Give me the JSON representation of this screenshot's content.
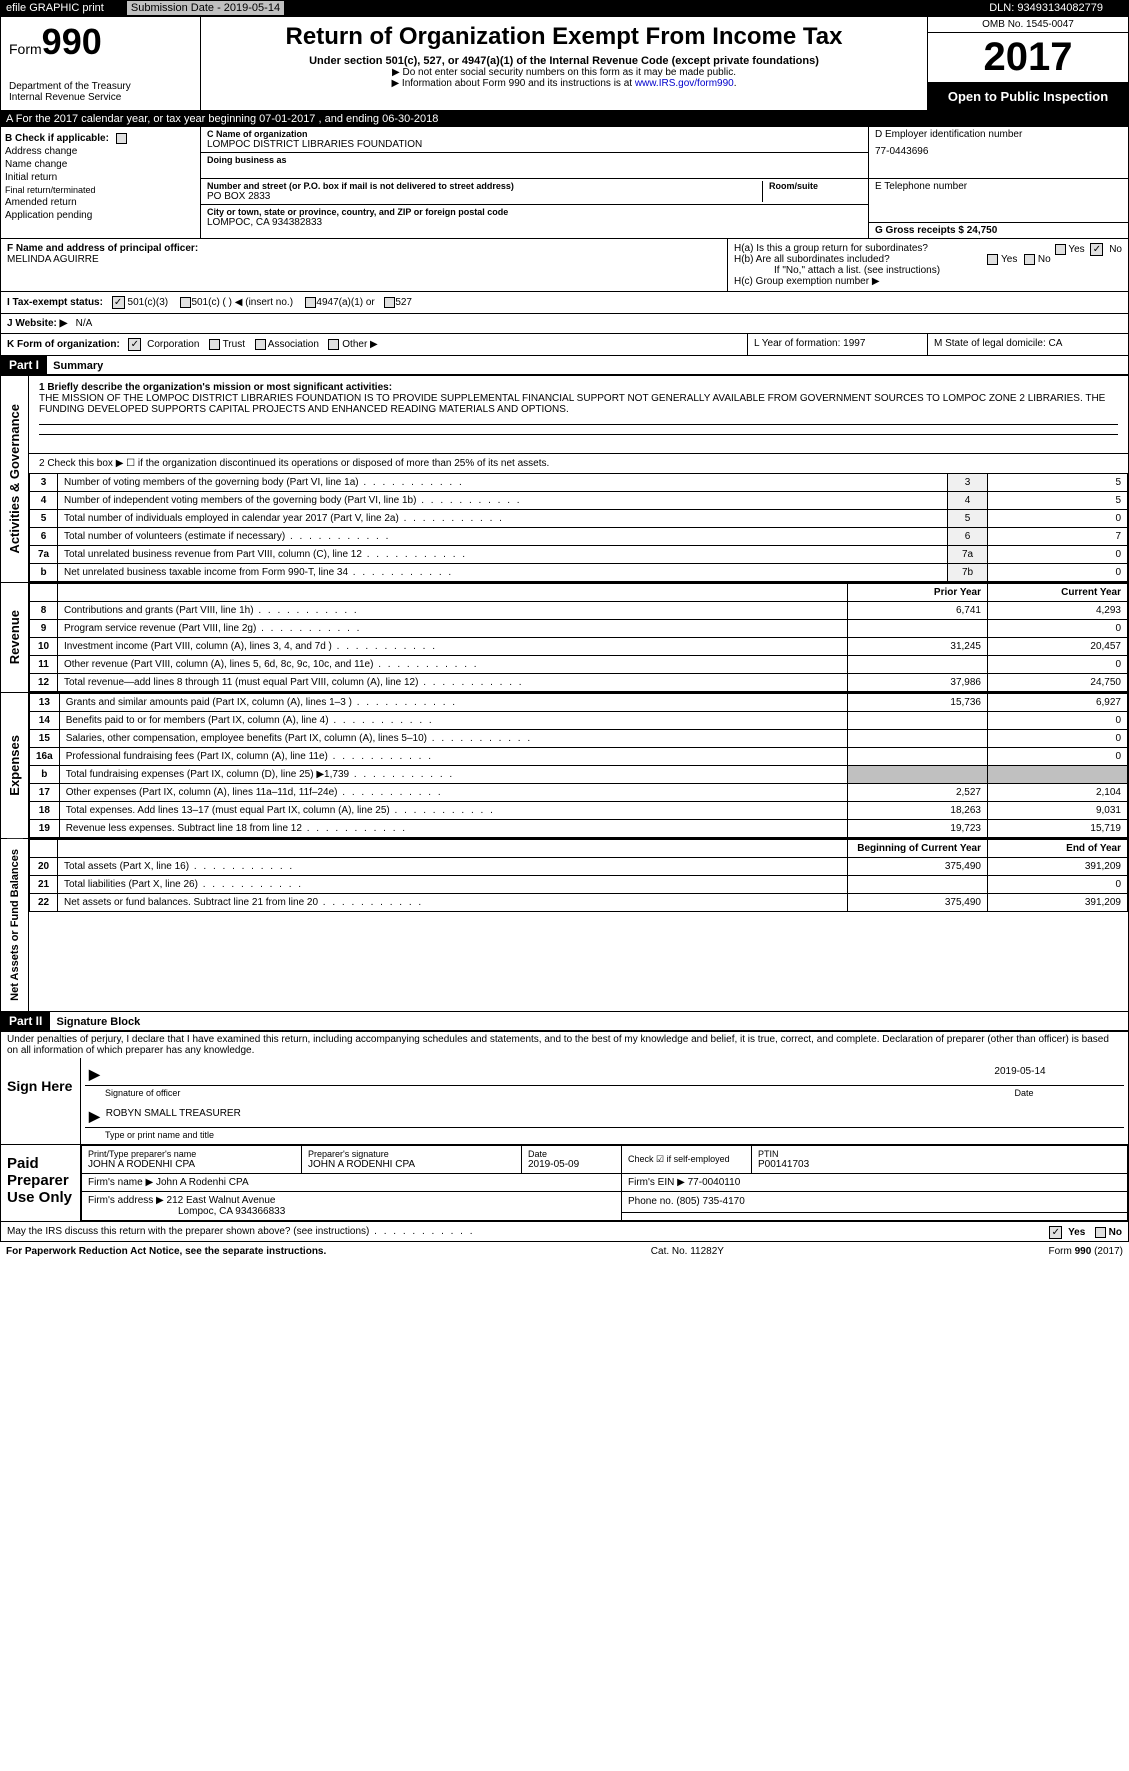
{
  "topbar": {
    "efile": "efile GRAPHIC print",
    "sub_label": "Submission Date - 2019-05-14",
    "dln": "DLN: 93493134082779"
  },
  "header": {
    "form_prefix": "Form",
    "form_num": "990",
    "dept": "Department of the Treasury\nInternal Revenue Service",
    "title": "Return of Organization Exempt From Income Tax",
    "subtitle": "Under section 501(c), 527, or 4947(a)(1) of the Internal Revenue Code (except private foundations)",
    "note1": "▶ Do not enter social security numbers on this form as it may be made public.",
    "note2": "▶ Information about Form 990 and its instructions is at ",
    "link": "www.IRS.gov/form990",
    "omb": "OMB No. 1545-0047",
    "year": "2017",
    "open": "Open to Public Inspection"
  },
  "row_a": "A   For the 2017 calendar year, or tax year beginning 07-01-2017        , and ending 06-30-2018",
  "section_b": {
    "check_label": "B Check if applicable:",
    "addr_change": "Address change",
    "name_change": "Name change",
    "initial": "Initial return",
    "final": "Final return/terminated",
    "amended": "Amended return",
    "pending": "Application pending",
    "c_label": "C Name of organization",
    "org_name": "LOMPOC DISTRICT LIBRARIES FOUNDATION",
    "dba": "Doing business as",
    "street_label": "Number and street (or P.O. box if mail is not delivered to street address)",
    "street": "PO BOX 2833",
    "room_label": "Room/suite",
    "city_label": "City or town, state or province, country, and ZIP or foreign postal code",
    "city": "LOMPOC, CA  934382833",
    "d_label": "D Employer identification number",
    "ein": "77-0443696",
    "e_label": "E Telephone number",
    "g_label": "G Gross receipts $ 24,750"
  },
  "row_f": {
    "f_label": "F  Name and address of principal officer:",
    "officer": "MELINDA AGUIRRE",
    "ha": "H(a)    Is this a group return for subordinates?",
    "hb": "H(b)    Are all subordinates included?",
    "hb_note": "If \"No,\" attach a list. (see instructions)",
    "hc": "H(c)    Group exemption number ▶",
    "yes": "Yes",
    "no": "No"
  },
  "tax_status": {
    "label": "I    Tax-exempt status:",
    "opt1": "501(c)(3)",
    "opt2": "501(c) (   ) ◀ (insert no.)",
    "opt3": "4947(a)(1) or",
    "opt4": "527"
  },
  "website": {
    "label": "J   Website: ▶",
    "val": "N/A"
  },
  "row_k": {
    "label": "K Form of organization:",
    "corp": "Corporation",
    "trust": "Trust",
    "assoc": "Association",
    "other": "Other ▶",
    "l_label": "L Year of formation: 1997",
    "m_label": "M State of legal domicile: CA"
  },
  "part1": {
    "title": "Part I",
    "subtitle": "Summary",
    "line1_label": "1  Briefly describe the organization's mission or most significant activities:",
    "mission": "THE MISSION OF THE LOMPOC DISTRICT LIBRARIES FOUNDATION IS TO PROVIDE SUPPLEMENTAL FINANCIAL SUPPORT NOT GENERALLY AVAILABLE FROM GOVERNMENT SOURCES TO LOMPOC ZONE 2 LIBRARIES. THE FUNDING DEVELOPED SUPPORTS CAPITAL PROJECTS AND ENHANCED READING MATERIALS AND OPTIONS.",
    "line2": "2     Check this box ▶ ☐  if the organization discontinued its operations or disposed of more than 25% of its net assets.",
    "sidebar_gov": "Activities & Governance",
    "sidebar_rev": "Revenue",
    "sidebar_exp": "Expenses",
    "sidebar_net": "Net Assets or Fund Balances",
    "col_prior": "Prior Year",
    "col_current": "Current Year",
    "col_begin": "Beginning of Current Year",
    "col_end": "End of Year",
    "rows_gov": [
      {
        "n": "3",
        "d": "Number of voting members of the governing body (Part VI, line 1a)",
        "m": "3",
        "v": "5"
      },
      {
        "n": "4",
        "d": "Number of independent voting members of the governing body (Part VI, line 1b)",
        "m": "4",
        "v": "5"
      },
      {
        "n": "5",
        "d": "Total number of individuals employed in calendar year 2017 (Part V, line 2a)",
        "m": "5",
        "v": "0"
      },
      {
        "n": "6",
        "d": "Total number of volunteers (estimate if necessary)",
        "m": "6",
        "v": "7"
      },
      {
        "n": "7a",
        "d": "Total unrelated business revenue from Part VIII, column (C), line 12",
        "m": "7a",
        "v": "0"
      },
      {
        "n": "b",
        "d": "Net unrelated business taxable income from Form 990-T, line 34",
        "m": "7b",
        "v": "0"
      }
    ],
    "rows_rev": [
      {
        "n": "8",
        "d": "Contributions and grants (Part VIII, line 1h)",
        "p": "6,741",
        "c": "4,293"
      },
      {
        "n": "9",
        "d": "Program service revenue (Part VIII, line 2g)",
        "p": "",
        "c": "0"
      },
      {
        "n": "10",
        "d": "Investment income (Part VIII, column (A), lines 3, 4, and 7d )",
        "p": "31,245",
        "c": "20,457"
      },
      {
        "n": "11",
        "d": "Other revenue (Part VIII, column (A), lines 5, 6d, 8c, 9c, 10c, and 11e)",
        "p": "",
        "c": "0"
      },
      {
        "n": "12",
        "d": "Total revenue—add lines 8 through 11 (must equal Part VIII, column (A), line 12)",
        "p": "37,986",
        "c": "24,750"
      }
    ],
    "rows_exp": [
      {
        "n": "13",
        "d": "Grants and similar amounts paid (Part IX, column (A), lines 1–3 )",
        "p": "15,736",
        "c": "6,927"
      },
      {
        "n": "14",
        "d": "Benefits paid to or for members (Part IX, column (A), line 4)",
        "p": "",
        "c": "0"
      },
      {
        "n": "15",
        "d": "Salaries, other compensation, employee benefits (Part IX, column (A), lines 5–10)",
        "p": "",
        "c": "0"
      },
      {
        "n": "16a",
        "d": "Professional fundraising fees (Part IX, column (A), line 11e)",
        "p": "",
        "c": "0"
      },
      {
        "n": "b",
        "d": "Total fundraising expenses (Part IX, column (D), line 25) ▶1,739",
        "p": "shade",
        "c": "shade"
      },
      {
        "n": "17",
        "d": "Other expenses (Part IX, column (A), lines 11a–11d, 11f–24e)",
        "p": "2,527",
        "c": "2,104"
      },
      {
        "n": "18",
        "d": "Total expenses. Add lines 13–17 (must equal Part IX, column (A), line 25)",
        "p": "18,263",
        "c": "9,031"
      },
      {
        "n": "19",
        "d": "Revenue less expenses. Subtract line 18 from line 12",
        "p": "19,723",
        "c": "15,719"
      }
    ],
    "rows_net": [
      {
        "n": "20",
        "d": "Total assets (Part X, line 16)",
        "p": "375,490",
        "c": "391,209"
      },
      {
        "n": "21",
        "d": "Total liabilities (Part X, line 26)",
        "p": "",
        "c": "0"
      },
      {
        "n": "22",
        "d": "Net assets or fund balances. Subtract line 21 from line 20",
        "p": "375,490",
        "c": "391,209"
      }
    ]
  },
  "part2": {
    "title": "Part II",
    "subtitle": "Signature Block",
    "penalty": "Under penalties of perjury, I declare that I have examined this return, including accompanying schedules and statements, and to the best of my knowledge and belief, it is true, correct, and complete. Declaration of preparer (other than officer) is based on all information of which preparer has any knowledge.",
    "sign_here": "Sign Here",
    "sig_officer": "Signature of officer",
    "sig_date": "2019-05-14",
    "date_label": "Date",
    "officer_name": "ROBYN SMALL TREASURER",
    "type_name": "Type or print name and title",
    "paid_label": "Paid Preparer Use Only",
    "prep_name_label": "Print/Type preparer's name",
    "prep_name": "JOHN A RODENHI CPA",
    "prep_sig_label": "Preparer's signature",
    "prep_sig": "JOHN A RODENHI CPA",
    "prep_date_label": "Date",
    "prep_date": "2019-05-09",
    "check_self": "Check ☑ if self-employed",
    "ptin_label": "PTIN",
    "ptin": "P00141703",
    "firm_name_label": "Firm's name      ▶",
    "firm_name": "John A Rodenhi CPA",
    "firm_ein_label": "Firm's EIN ▶",
    "firm_ein": "77-0040110",
    "firm_addr_label": "Firm's address ▶",
    "firm_addr": "212 East Walnut Avenue",
    "firm_city": "Lompoc, CA  934366833",
    "phone_label": "Phone no.",
    "phone": "(805) 735-4170",
    "discuss": "May the IRS discuss this return with the preparer shown above? (see instructions)"
  },
  "footer": {
    "pra": "For Paperwork Reduction Act Notice, see the separate instructions.",
    "cat": "Cat. No. 11282Y",
    "form": "Form 990 (2017)"
  }
}
